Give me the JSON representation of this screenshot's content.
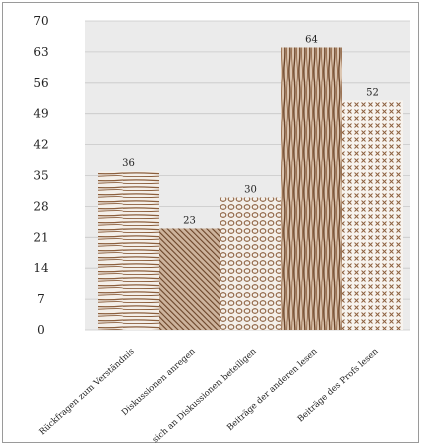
{
  "chart_data": {
    "type": "bar",
    "title": "",
    "xlabel": "",
    "ylabel": "",
    "ylim": [
      0,
      70
    ],
    "yticks": [
      0,
      7,
      14,
      21,
      28,
      35,
      42,
      49,
      56,
      63,
      70
    ],
    "grid": true,
    "categories": [
      "Rückfragen zum Verständnis",
      "Diskussionen anregen",
      "sich an Diskussionen beteiligen",
      "Beiträge der anderen lesen",
      "Beiträge des Profs lesen"
    ],
    "values": [
      36,
      23,
      30,
      64,
      52
    ],
    "patterns": [
      "horizontal-lines",
      "diagonal-hatch",
      "circles",
      "vertical-lines",
      "crosses"
    ],
    "colors": {
      "pattern": "#8b5e3c",
      "plot_background": "#ebebeb",
      "gridline": "#c8c8c8"
    }
  }
}
